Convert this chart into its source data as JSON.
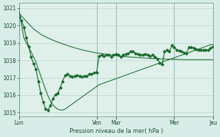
{
  "background_color": "#d8ede8",
  "plot_bg_color": "#dff0eb",
  "grid_color": "#b8d4cc",
  "line_color": "#1a6b2e",
  "xlabel": "Pression niveau de la mer( hPa )",
  "ylim": [
    1014.8,
    1021.3
  ],
  "yticks": [
    1015,
    1016,
    1017,
    1018,
    1019,
    1020,
    1021
  ],
  "xtick_labels": [
    "Lun",
    "Ven",
    "Mar",
    "Mer",
    "Jeu"
  ],
  "xtick_positions": [
    0,
    32,
    40,
    64,
    80
  ],
  "total_points": 81,
  "series_straight": [
    1020.7,
    1020.55,
    1020.4,
    1020.25,
    1020.1,
    1019.95,
    1019.8,
    1019.7,
    1019.6,
    1019.5,
    1019.42,
    1019.35,
    1019.28,
    1019.22,
    1019.16,
    1019.1,
    1019.05,
    1019.0,
    1018.95,
    1018.9,
    1018.85,
    1018.8,
    1018.76,
    1018.72,
    1018.68,
    1018.64,
    1018.6,
    1018.57,
    1018.54,
    1018.51,
    1018.48,
    1018.45,
    1018.43,
    1018.41,
    1018.39,
    1018.37,
    1018.35,
    1018.33,
    1018.31,
    1018.29,
    1018.27,
    1018.25,
    1018.23,
    1018.22,
    1018.21,
    1018.2,
    1018.19,
    1018.18,
    1018.17,
    1018.16,
    1018.15,
    1018.14,
    1018.13,
    1018.12,
    1018.11,
    1018.1,
    1018.1,
    1018.09,
    1018.09,
    1018.08,
    1018.08,
    1018.07,
    1018.07,
    1018.06,
    1018.06,
    1018.06,
    1018.05,
    1018.05,
    1018.05,
    1018.04,
    1018.04,
    1018.04,
    1018.04,
    1018.04,
    1018.04,
    1018.04,
    1018.04,
    1018.04,
    1018.04,
    1018.04,
    1018.04
  ],
  "series_steep": [
    1021.0,
    1020.1,
    1019.3,
    1019.0,
    1018.75,
    1018.5,
    1018.2,
    1017.9,
    1017.5,
    1017.1,
    1016.7,
    1016.3,
    1015.95,
    1015.65,
    1015.45,
    1015.3,
    1015.2,
    1015.15,
    1015.15,
    1015.2,
    1015.3,
    1015.4,
    1015.5,
    1015.6,
    1015.7,
    1015.8,
    1015.9,
    1016.0,
    1016.1,
    1016.2,
    1016.3,
    1016.4,
    1016.5,
    1016.6,
    1016.65,
    1016.7,
    1016.75,
    1016.8,
    1016.85,
    1016.9,
    1016.95,
    1017.0,
    1017.05,
    1017.1,
    1017.15,
    1017.2,
    1017.25,
    1017.3,
    1017.35,
    1017.4,
    1017.45,
    1017.5,
    1017.55,
    1017.6,
    1017.65,
    1017.7,
    1017.75,
    1017.8,
    1017.85,
    1017.9,
    1017.95,
    1018.0,
    1018.05,
    1018.1,
    1018.15,
    1018.2,
    1018.25,
    1018.3,
    1018.35,
    1018.4,
    1018.45,
    1018.5,
    1018.55,
    1018.6,
    1018.65,
    1018.7,
    1018.75,
    1018.8,
    1018.85,
    1018.9,
    1018.9
  ],
  "series_measured_x": [
    0,
    1,
    2,
    3,
    4,
    5,
    6,
    7,
    8,
    9,
    10,
    11,
    12,
    13,
    14,
    15,
    16,
    17,
    18,
    19,
    20,
    21,
    22,
    23,
    24,
    25,
    26,
    27,
    28,
    29,
    30,
    31,
    32,
    33,
    34,
    35,
    36,
    37,
    38,
    39,
    40,
    41,
    42,
    43,
    44,
    45,
    46,
    47,
    48,
    49,
    50,
    51,
    52,
    53,
    54,
    55,
    56,
    57,
    58,
    59,
    60,
    61,
    62,
    63,
    64,
    65,
    66,
    67,
    68,
    69,
    70,
    71,
    72,
    73,
    74,
    75,
    76,
    77,
    78,
    79,
    80
  ],
  "series_measured_y": [
    1020.5,
    1020.3,
    1019.9,
    1019.3,
    1018.8,
    1018.2,
    1017.8,
    1017.5,
    1016.8,
    1016.1,
    1015.6,
    1015.2,
    1015.15,
    1015.4,
    1015.8,
    1016.05,
    1016.1,
    1016.45,
    1016.8,
    1017.15,
    1017.2,
    1017.1,
    1017.05,
    1017.1,
    1017.15,
    1017.1,
    1017.05,
    1017.1,
    1017.1,
    1017.2,
    1017.2,
    1017.3,
    1017.3,
    1018.25,
    1018.3,
    1018.25,
    1018.3,
    1018.3,
    1018.2,
    1018.3,
    1018.35,
    1018.3,
    1018.2,
    1018.3,
    1018.35,
    1018.4,
    1018.5,
    1018.5,
    1018.4,
    1018.35,
    1018.3,
    1018.3,
    1018.35,
    1018.3,
    1018.25,
    1018.3,
    1018.2,
    1018.1,
    1017.85,
    1017.75,
    1018.5,
    1018.6,
    1018.5,
    1018.85,
    1018.75,
    1018.6,
    1018.55,
    1018.5,
    1018.45,
    1018.4,
    1018.75,
    1018.75,
    1018.7,
    1018.65,
    1018.6,
    1018.6,
    1018.6,
    1018.6,
    1018.6,
    1018.7,
    1018.8
  ]
}
